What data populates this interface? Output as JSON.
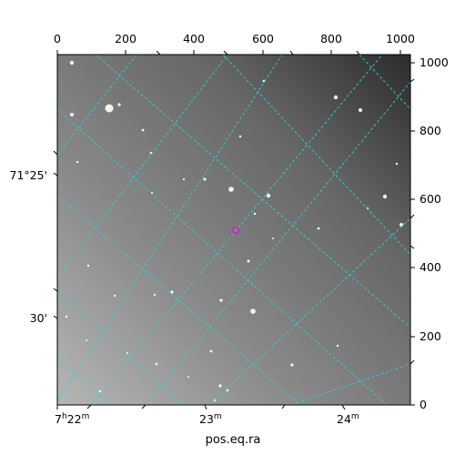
{
  "image": {
    "kind": "astronomical-image",
    "colormap": "grayscale",
    "grid_color": "#2ad4d4",
    "marker_color": "#d21fd2"
  },
  "axes": {
    "xlabel": "pos.eq.ra",
    "top_ticks": [
      "0",
      "200",
      "400",
      "600",
      "800",
      "1000"
    ],
    "right_ticks": [
      "0",
      "200",
      "400",
      "600",
      "800",
      "1000"
    ],
    "bottom_ticks": [
      {
        "hour": "7",
        "h_unit": "h",
        "minute": "22",
        "m_unit": "m"
      },
      {
        "minute": "23",
        "m_unit": "m"
      },
      {
        "minute": "24",
        "m_unit": "m"
      }
    ],
    "left_ticks": [
      "71°25'",
      "30'"
    ]
  }
}
